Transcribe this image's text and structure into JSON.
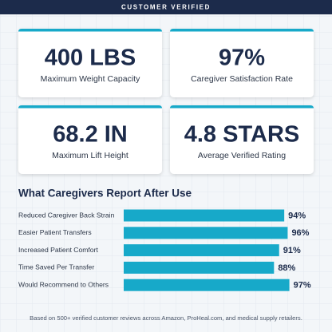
{
  "header": {
    "badge": "CUSTOMER VERIFIED"
  },
  "stats": [
    {
      "value": "400 LBS",
      "label": "Maximum Weight Capacity"
    },
    {
      "value": "97%",
      "label": "Caregiver Satisfaction Rate"
    },
    {
      "value": "68.2 IN",
      "label": "Maximum Lift Height"
    },
    {
      "value": "4.8 STARS",
      "label": "Average Verified Rating"
    }
  ],
  "chart_data": {
    "type": "bar",
    "orientation": "horizontal",
    "title": "What Caregivers Report After Use",
    "categories": [
      "Reduced Caregiver Back Strain",
      "Easier Patient Transfers",
      "Increased Patient Comfort",
      "Time Saved Per Transfer",
      "Would Recommend to Others"
    ],
    "values": [
      94,
      96,
      91,
      88,
      97
    ],
    "value_labels": [
      "94%",
      "96%",
      "91%",
      "88%",
      "97%"
    ],
    "color": "#17a9c9",
    "xlim": [
      0,
      100
    ]
  },
  "footnote": "Based on 500+ verified customer reviews across Amazon, ProHeal.com, and medical supply retailers."
}
